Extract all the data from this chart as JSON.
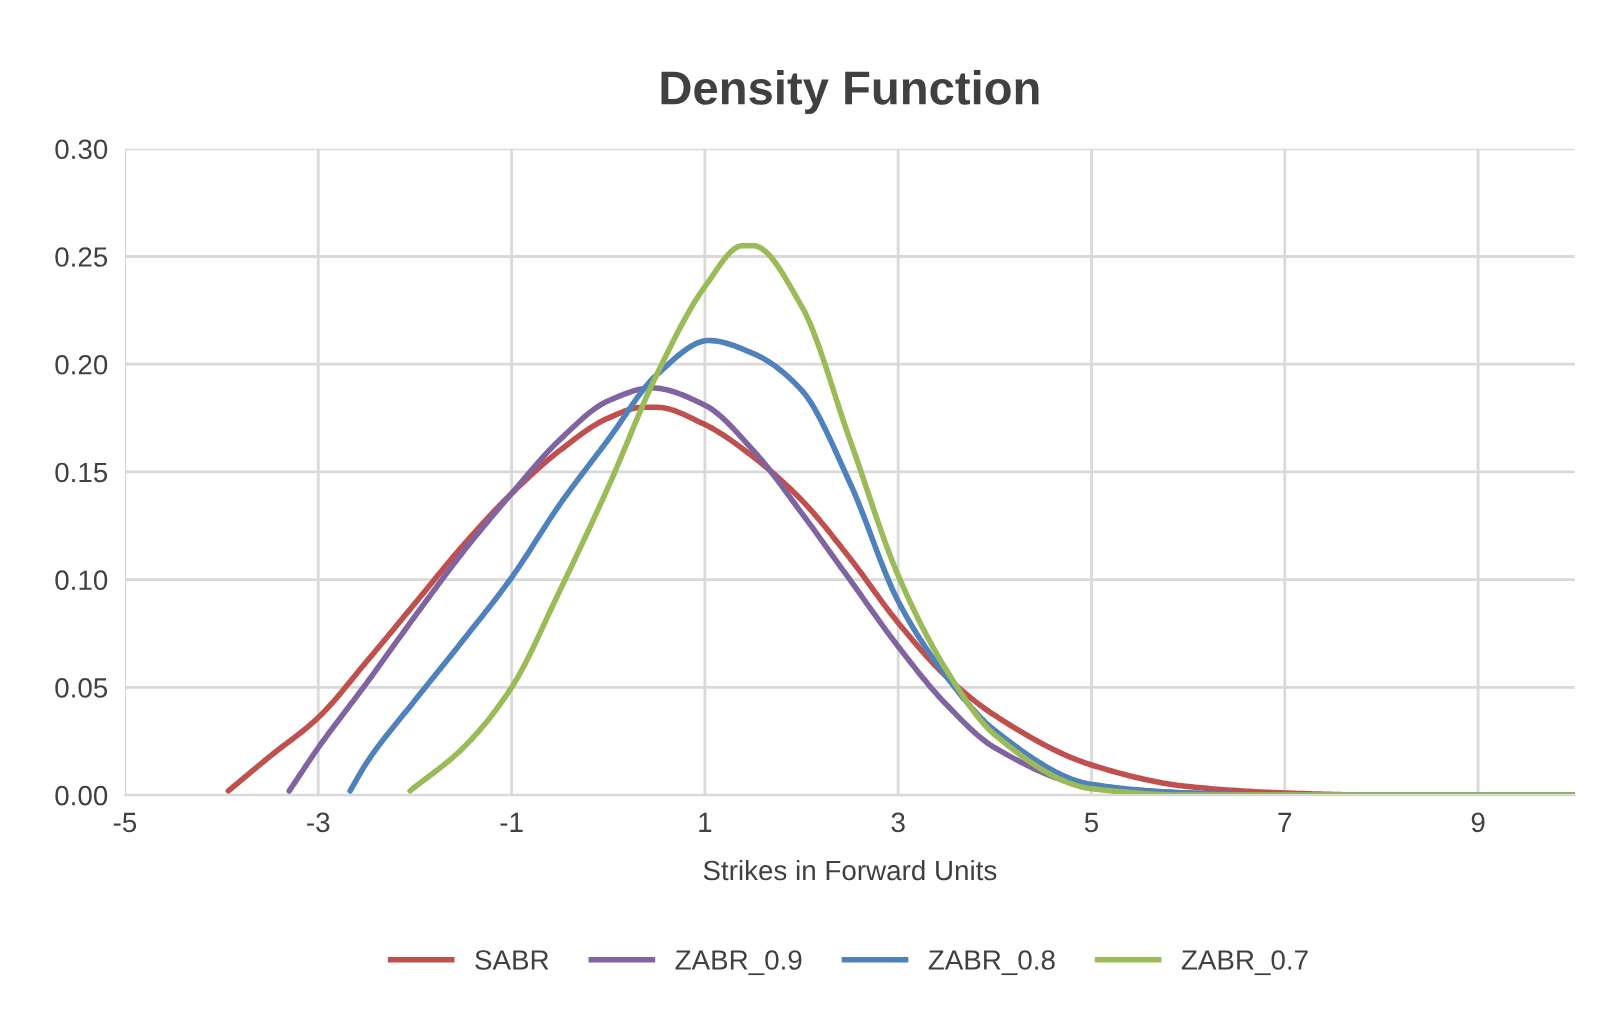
{
  "chart_data": {
    "type": "line",
    "title": "Density Function",
    "xlabel": "Strikes in Forward Units",
    "xlim": [
      -5,
      10
    ],
    "xticks": [
      -5,
      -3,
      -1,
      1,
      3,
      5,
      7,
      9
    ],
    "ylim": [
      0,
      0.3
    ],
    "yticks": [
      {
        "value": 0,
        "label": "0.00"
      },
      {
        "value": 0.05,
        "label": "0.05"
      },
      {
        "value": 0.1,
        "label": "0.10"
      },
      {
        "value": 0.15,
        "label": "0.15"
      },
      {
        "value": 0.2,
        "label": "0.20"
      },
      {
        "value": 0.25,
        "label": "0.25"
      },
      {
        "value": 0.3,
        "label": "0.30"
      }
    ],
    "grid": true,
    "legend": "bottom",
    "marker": "none",
    "line_style": "solid",
    "series": [
      {
        "name": "SABR",
        "color": "#c0504d",
        "x": [
          -3.93,
          -3.5,
          -3,
          -2.5,
          -2,
          -1.5,
          -1,
          -0.5,
          0,
          0.35,
          0.5,
          1,
          1.5,
          2,
          2.5,
          3,
          3.5,
          4,
          5,
          6,
          7,
          8,
          10
        ],
        "values": [
          0.002,
          0.018,
          0.036,
          0.062,
          0.089,
          0.116,
          0.14,
          0.16,
          0.175,
          0.18,
          0.18,
          0.172,
          0.157,
          0.137,
          0.11,
          0.08,
          0.055,
          0.037,
          0.014,
          0.004,
          0.001,
          0,
          0
        ]
      },
      {
        "name": "ZABR_0.9",
        "color": "#8064a2",
        "x": [
          -3.3,
          -3,
          -2.5,
          -2,
          -1.5,
          -1,
          -0.5,
          0,
          0.45,
          1,
          1.5,
          2,
          2.5,
          3,
          3.5,
          4,
          5,
          6,
          7,
          10
        ],
        "values": [
          0.002,
          0.022,
          0.052,
          0.083,
          0.113,
          0.14,
          0.165,
          0.183,
          0.189,
          0.181,
          0.16,
          0.131,
          0.1,
          0.069,
          0.042,
          0.022,
          0.004,
          0.001,
          0,
          0
        ]
      },
      {
        "name": "ZABR_0.8",
        "color": "#4f81bd",
        "x": [
          -2.67,
          -2.5,
          -2,
          -1.5,
          -1,
          -0.5,
          0,
          0.5,
          1.04,
          1.5,
          2,
          2.5,
          3,
          3.5,
          4,
          5,
          6,
          7,
          10
        ],
        "values": [
          0.002,
          0.015,
          0.044,
          0.072,
          0.101,
          0.135,
          0.165,
          0.195,
          0.211,
          0.205,
          0.188,
          0.145,
          0.09,
          0.055,
          0.03,
          0.005,
          0.001,
          0,
          0
        ]
      },
      {
        "name": "ZABR_0.7",
        "color": "#9bbb59",
        "x": [
          -2.05,
          -1.5,
          -1,
          -0.5,
          0,
          0.5,
          1,
          1.39,
          1.5,
          2,
          2.5,
          3,
          3.5,
          4,
          5,
          6,
          7,
          10
        ],
        "values": [
          0.002,
          0.022,
          0.05,
          0.095,
          0.143,
          0.195,
          0.236,
          0.255,
          0.255,
          0.227,
          0.165,
          0.102,
          0.058,
          0.028,
          0.003,
          0,
          0,
          0
        ]
      }
    ]
  }
}
